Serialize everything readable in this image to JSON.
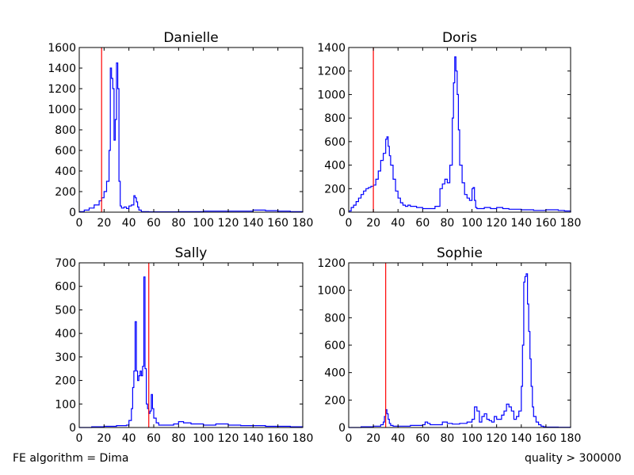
{
  "figure": {
    "footer_left": "FE algorithm = Dima",
    "footer_right": "quality > 300000"
  },
  "chart_data": [
    {
      "type": "line",
      "title": "Danielle",
      "xlim": [
        0,
        180
      ],
      "ylim": [
        0,
        1600
      ],
      "xticks": [
        0,
        20,
        40,
        60,
        80,
        100,
        120,
        140,
        160,
        180
      ],
      "yticks": [
        0,
        200,
        400,
        600,
        800,
        1000,
        1200,
        1400,
        1600
      ],
      "threshold_x": 18,
      "series": [
        {
          "step": "post",
          "x": [
            0,
            4,
            8,
            12,
            16,
            18,
            20,
            22,
            24,
            25,
            26,
            27,
            28,
            29,
            30,
            31,
            32,
            33,
            34,
            36,
            38,
            40,
            42,
            44,
            45,
            46,
            47,
            48,
            50,
            56,
            80,
            100,
            120,
            140,
            150,
            160,
            170,
            180
          ],
          "y": [
            5,
            20,
            40,
            70,
            110,
            140,
            200,
            300,
            600,
            1400,
            1300,
            1200,
            700,
            900,
            1450,
            1200,
            300,
            60,
            40,
            50,
            35,
            60,
            70,
            160,
            140,
            100,
            50,
            20,
            5,
            3,
            5,
            10,
            10,
            20,
            15,
            10,
            5,
            0
          ]
        }
      ],
      "colors": {
        "series": "#0000ff",
        "threshold": "#ff0000"
      }
    },
    {
      "type": "line",
      "title": "Doris",
      "xlim": [
        0,
        180
      ],
      "ylim": [
        0,
        1400
      ],
      "xticks": [
        0,
        20,
        40,
        60,
        80,
        100,
        120,
        140,
        160,
        180
      ],
      "yticks": [
        0,
        200,
        400,
        600,
        800,
        1000,
        1200,
        1400
      ],
      "threshold_x": 20,
      "series": [
        {
          "step": "post",
          "x": [
            0,
            2,
            4,
            6,
            8,
            10,
            12,
            14,
            16,
            18,
            20,
            22,
            24,
            26,
            28,
            30,
            31,
            32,
            33,
            34,
            36,
            38,
            40,
            42,
            44,
            46,
            48,
            50,
            55,
            60,
            65,
            70,
            74,
            76,
            78,
            80,
            82,
            84,
            85,
            86,
            87,
            88,
            89,
            90,
            92,
            94,
            96,
            98,
            100,
            101,
            102,
            103,
            104,
            106,
            110,
            115,
            120,
            125,
            130,
            140,
            150,
            160,
            170,
            175,
            180
          ],
          "y": [
            10,
            40,
            60,
            90,
            120,
            150,
            180,
            200,
            210,
            220,
            230,
            280,
            350,
            440,
            500,
            620,
            640,
            560,
            480,
            400,
            280,
            180,
            120,
            80,
            60,
            50,
            60,
            50,
            40,
            30,
            30,
            50,
            200,
            240,
            280,
            250,
            400,
            800,
            1100,
            1320,
            1200,
            1000,
            700,
            400,
            250,
            150,
            120,
            100,
            200,
            210,
            100,
            40,
            30,
            30,
            40,
            30,
            40,
            30,
            25,
            20,
            15,
            20,
            15,
            10,
            0
          ]
        }
      ],
      "colors": {
        "series": "#0000ff",
        "threshold": "#ff0000"
      }
    },
    {
      "type": "line",
      "title": "Sally",
      "xlim": [
        0,
        180
      ],
      "ylim": [
        0,
        700
      ],
      "xticks": [
        0,
        20,
        40,
        60,
        80,
        100,
        120,
        140,
        160,
        180
      ],
      "yticks": [
        0,
        100,
        200,
        300,
        400,
        500,
        600,
        700
      ],
      "threshold_x": 56,
      "series": [
        {
          "step": "post",
          "x": [
            0,
            10,
            20,
            30,
            38,
            40,
            42,
            43,
            44,
            45,
            46,
            47,
            48,
            49,
            50,
            51,
            52,
            53,
            54,
            55,
            56,
            57,
            58,
            59,
            60,
            62,
            64,
            66,
            70,
            76,
            80,
            84,
            90,
            100,
            110,
            120,
            130,
            140,
            150,
            160,
            170,
            180
          ],
          "y": [
            0,
            3,
            5,
            8,
            10,
            30,
            80,
            170,
            240,
            450,
            240,
            200,
            220,
            240,
            220,
            260,
            640,
            250,
            100,
            80,
            60,
            70,
            140,
            80,
            40,
            20,
            10,
            10,
            10,
            15,
            25,
            20,
            15,
            10,
            15,
            10,
            8,
            8,
            5,
            5,
            3,
            0
          ]
        }
      ],
      "colors": {
        "series": "#0000ff",
        "threshold": "#ff0000"
      }
    },
    {
      "type": "line",
      "title": "Sophie",
      "xlim": [
        0,
        180
      ],
      "ylim": [
        0,
        1200
      ],
      "xticks": [
        0,
        20,
        40,
        60,
        80,
        100,
        120,
        140,
        160,
        180
      ],
      "yticks": [
        0,
        200,
        400,
        600,
        800,
        1000,
        1200
      ],
      "threshold_x": 30,
      "series": [
        {
          "step": "post",
          "x": [
            0,
            10,
            20,
            26,
            28,
            29,
            30,
            31,
            32,
            33,
            34,
            36,
            40,
            50,
            60,
            62,
            64,
            66,
            70,
            76,
            80,
            84,
            90,
            96,
            100,
            102,
            104,
            106,
            108,
            110,
            112,
            114,
            116,
            118,
            120,
            124,
            126,
            128,
            130,
            132,
            134,
            136,
            138,
            140,
            141,
            142,
            143,
            144,
            145,
            146,
            147,
            148,
            149,
            150,
            152,
            154,
            156,
            158,
            160,
            170,
            180
          ],
          "y": [
            0,
            5,
            10,
            20,
            40,
            80,
            130,
            100,
            60,
            30,
            15,
            10,
            10,
            15,
            20,
            40,
            30,
            20,
            20,
            40,
            30,
            25,
            30,
            40,
            60,
            150,
            120,
            40,
            80,
            100,
            60,
            50,
            40,
            80,
            60,
            90,
            120,
            170,
            150,
            120,
            60,
            80,
            120,
            300,
            600,
            1060,
            1100,
            1120,
            900,
            700,
            500,
            300,
            150,
            80,
            40,
            20,
            10,
            5,
            3,
            2,
            0
          ]
        }
      ],
      "colors": {
        "series": "#0000ff",
        "threshold": "#ff0000"
      }
    }
  ]
}
